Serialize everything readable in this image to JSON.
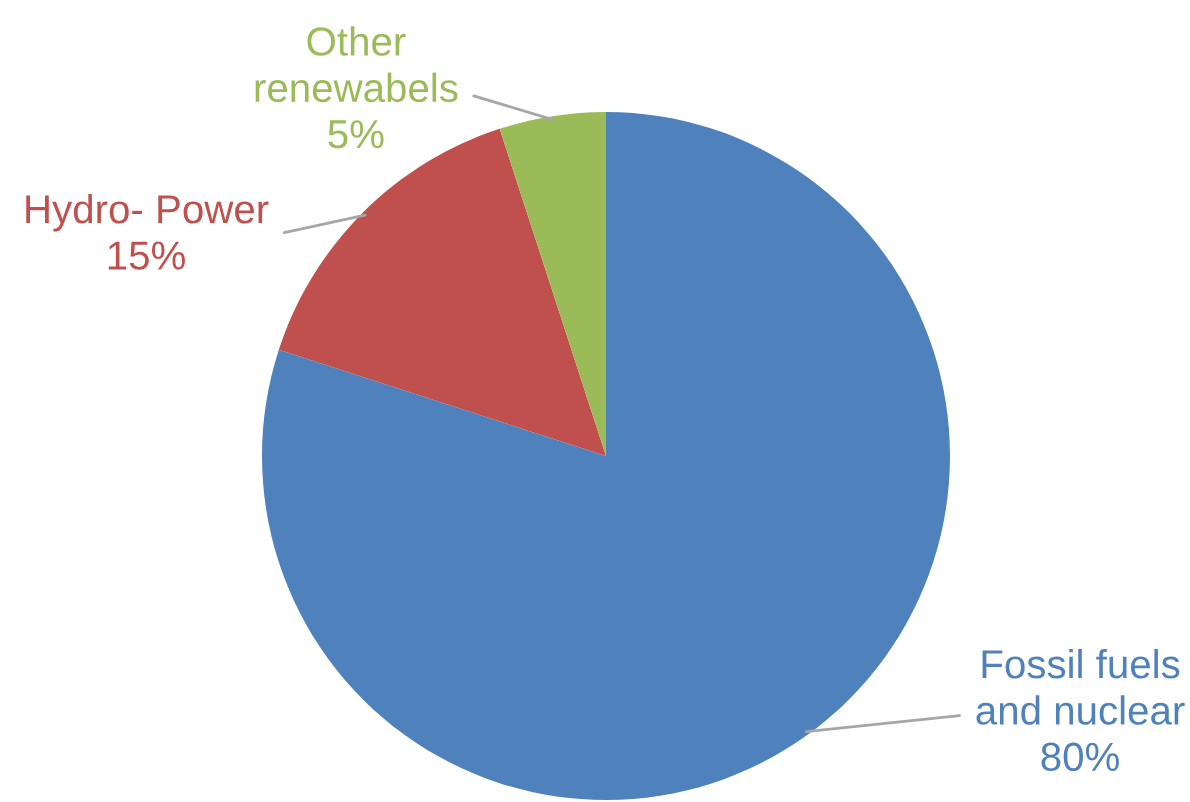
{
  "chart_data": {
    "type": "pie",
    "categories": [
      "Fossil fuels\nand nuclear",
      "Hydro- Power",
      "Other\nrenewabels"
    ],
    "values": [
      80,
      15,
      5
    ],
    "colors": [
      "#4f81bd",
      "#c0504d",
      "#9bbb59"
    ],
    "value_labels": [
      "80%",
      "15%",
      "5%"
    ]
  }
}
